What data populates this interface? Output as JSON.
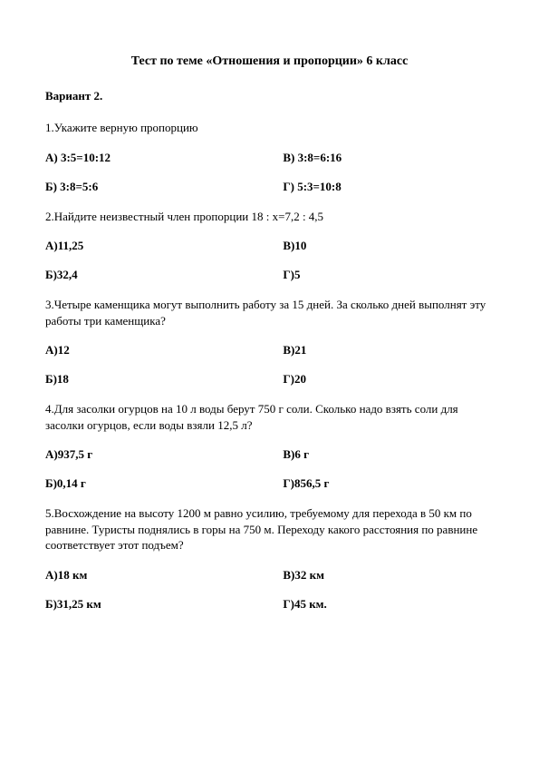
{
  "title": "Тест по теме «Отношения и пропорции» 6 класс",
  "variant": "Вариант 2.",
  "q1": {
    "text": "1.Укажите верную пропорцию",
    "a": "А) 3:5=10:12",
    "b": "Б) 3:8=5:6",
    "v": "В) 3:8=6:16",
    "g": "Г) 5:3=10:8"
  },
  "q2": {
    "text": "2.Найдите неизвестный член пропорции 18 : х=7,2 : 4,5",
    "a": "А)11,25",
    "b": "Б)32,4",
    "v": "В)10",
    "g": "Г)5"
  },
  "q3": {
    "text": "3.Четыре каменщика могут выполнить работу за 15 дней. За сколько дней выполнят эту работы три каменщика?",
    "a": "А)12",
    "b": "Б)18",
    "v": "В)21",
    "g": "Г)20"
  },
  "q4": {
    "text": "4.Для засолки огурцов на 10 л воды берут 750 г соли. Сколько надо взять соли для засолки огурцов, если воды взяли 12,5 л?",
    "a": "А)937,5 г",
    "b": "Б)0,14 г",
    "v": "В)6 г",
    "g": "Г)856,5 г"
  },
  "q5": {
    "text": "5.Восхождение на высоту 1200 м равно усилию, требуемому для перехода в 50 км по равнине. Туристы поднялись в горы на 750 м. Переходу какого расстояния по равнине соответствует этот подъем?",
    "a": "А)18 км",
    "b": "Б)31,25 км",
    "v": "В)32 км",
    "g": "Г)45 км."
  }
}
